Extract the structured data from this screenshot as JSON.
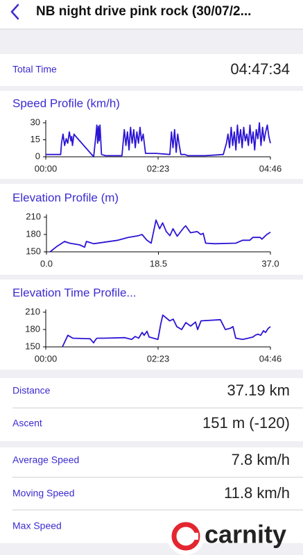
{
  "header": {
    "title": "NB night drive pink rock  (30/07/2..."
  },
  "total_time": {
    "label": "Total Time",
    "value": "04:47:34"
  },
  "chart_data": [
    {
      "type": "line",
      "title": "Speed Profile (km/h)",
      "color": "#2b14d4",
      "xlim": [
        0,
        286
      ],
      "ylim": [
        0,
        30
      ],
      "xticks": [
        {
          "value": 0,
          "label": "00:00"
        },
        {
          "value": 143,
          "label": "02:23"
        },
        {
          "value": 286,
          "label": "04:46"
        }
      ],
      "yticks": [
        0,
        15,
        30
      ],
      "x": [
        0,
        19,
        20,
        22,
        24,
        26,
        28,
        30,
        32,
        33,
        34,
        36,
        37,
        61,
        64,
        65,
        66,
        67,
        68,
        69,
        71,
        76,
        97,
        100,
        102,
        104,
        106,
        108,
        110,
        112,
        114,
        116,
        118,
        120,
        122,
        124,
        127,
        131,
        141,
        158,
        160,
        162,
        164,
        166,
        168,
        170,
        172,
        177,
        181,
        203,
        226,
        230,
        232,
        234,
        236,
        238,
        240,
        242,
        244,
        246,
        248,
        250,
        252,
        254,
        256,
        258,
        260,
        262,
        264,
        266,
        268,
        270,
        272,
        274,
        276,
        278,
        280,
        282,
        284,
        286
      ],
      "values": [
        2,
        2,
        12,
        20,
        10,
        16,
        12,
        22,
        14,
        18,
        10,
        20,
        19,
        0,
        20,
        28,
        12,
        27,
        14,
        28,
        2,
        1,
        1,
        24,
        10,
        22,
        6,
        26,
        12,
        24,
        8,
        22,
        12,
        26,
        14,
        20,
        3,
        3,
        3,
        2,
        22,
        8,
        24,
        4,
        20,
        10,
        2,
        2,
        1,
        1,
        2,
        12,
        20,
        8,
        26,
        10,
        22,
        6,
        28,
        12,
        24,
        8,
        26,
        14,
        20,
        10,
        28,
        12,
        22,
        6,
        24,
        16,
        30,
        10,
        26,
        14,
        22,
        28,
        18,
        12
      ]
    },
    {
      "type": "line",
      "title": "Elevation Profile (m)",
      "color": "#2b14d4",
      "xlim": [
        0,
        37
      ],
      "ylim": [
        150,
        210
      ],
      "xticks": [
        {
          "value": 0,
          "label": "0.0"
        },
        18.5,
        {
          "value": 37,
          "label": "37.0"
        }
      ],
      "yticks": [
        150,
        180,
        210
      ],
      "x": [
        0.6,
        1.8,
        3.0,
        3.8,
        5.5,
        6.3,
        6.6,
        7.8,
        11.8,
        13.5,
        15.2,
        15.8,
        16.6,
        17.3,
        17.8,
        18.1,
        18.7,
        19.2,
        19.8,
        20.4,
        20.9,
        21.6,
        22.7,
        23.0,
        23.8,
        24.9,
        25.5,
        25.9,
        26.3,
        27.8,
        31.3,
        32.4,
        33.6,
        34.1,
        35.3,
        35.6,
        36.4,
        37.0
      ],
      "values": [
        150,
        160,
        168,
        165,
        162,
        158,
        168,
        164,
        170,
        175,
        178,
        180,
        170,
        165,
        190,
        205,
        190,
        200,
        185,
        178,
        190,
        177,
        192,
        195,
        183,
        185,
        180,
        182,
        165,
        164,
        165,
        170,
        170,
        175,
        175,
        172,
        180,
        184
      ]
    },
    {
      "type": "line",
      "title": "Elevation Time Profile...",
      "color": "#2b14d4",
      "xlim": [
        0,
        286
      ],
      "ylim": [
        150,
        210
      ],
      "xticks": [
        {
          "value": 0,
          "label": "00:00"
        },
        {
          "value": 143,
          "label": "02:23"
        },
        {
          "value": 286,
          "label": "04:46"
        }
      ],
      "yticks": [
        150,
        180,
        210
      ],
      "x": [
        21.2,
        28.2,
        34.4,
        56.5,
        60.9,
        63.6,
        65.3,
        74.1,
        100.6,
        109.5,
        113.9,
        118.3,
        122.7,
        125.3,
        128.9,
        131.5,
        142.8,
        146.4,
        149,
        157.8,
        162.2,
        166.8,
        173,
        178.3,
        184.5,
        190.7,
        193.3,
        197.7,
        222.4,
        228.6,
        234.8,
        238.3,
        241.9,
        250.7,
        257.7,
        263.9,
        266.6,
        270.1,
        273.6,
        277.2,
        279.8,
        283.3,
        286
      ],
      "values": [
        150,
        170,
        165,
        164,
        157,
        163,
        165,
        165,
        166,
        163,
        168,
        165,
        175,
        170,
        177,
        167,
        163,
        190,
        205,
        195,
        198,
        185,
        180,
        192,
        186,
        193,
        180,
        195,
        197,
        180,
        182,
        185,
        165,
        163,
        165,
        167,
        170,
        172,
        170,
        178,
        175,
        182,
        185
      ]
    }
  ],
  "stats": [
    {
      "label": "Distance",
      "value": "37.19 km"
    },
    {
      "label": "Ascent",
      "value": "151 m (-120)"
    },
    {
      "label": "Average Speed",
      "value": "7.8 km/h"
    },
    {
      "label": "Moving Speed",
      "value": "11.8 km/h"
    },
    {
      "label": "Max Speed"
    }
  ],
  "logo": "carnity"
}
